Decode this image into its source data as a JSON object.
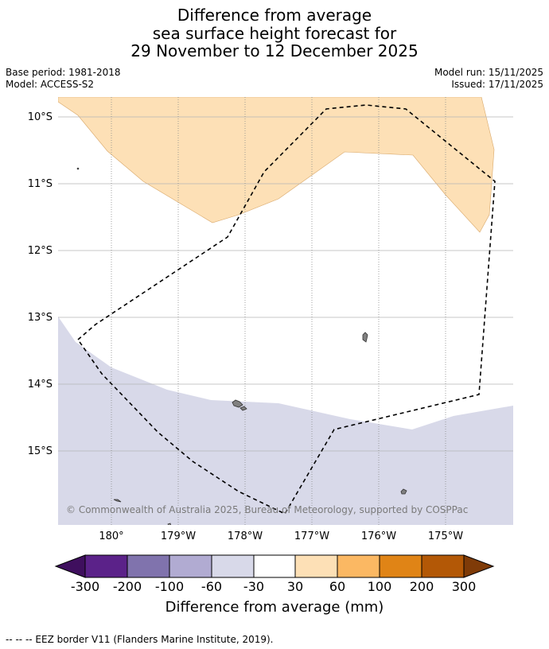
{
  "header": {
    "title_lines": [
      "Difference from average",
      "sea surface height forecast for",
      "29 November to 12 December 2025"
    ],
    "base_period": "Base period: 1981-2018",
    "model": "Model: ACCESS-S2",
    "model_run": "Model run: 15/11/2025",
    "issued": "Issued: 17/11/2025"
  },
  "map": {
    "lat_labels": [
      "10°S",
      "11°S",
      "12°S",
      "13°S",
      "14°S",
      "15°S"
    ],
    "lon_labels": [
      "180°",
      "179°W",
      "178°W",
      "177°W",
      "176°W",
      "175°W"
    ],
    "copyright": "© Commonwealth of Australia 2025, Bureau of Meteorology, supported by COSPPac",
    "fill_colors": {
      "positive_30_60": "#fde0b6",
      "negative_60_30": "#d8d9e9",
      "land": "#808080",
      "eez_line": "#000000"
    }
  },
  "colorbar": {
    "ticks": [
      "-300",
      "-200",
      "-100",
      "-60",
      "-30",
      "30",
      "60",
      "100",
      "200",
      "300"
    ],
    "colors": [
      "#3f0f5e",
      "#5b2289",
      "#8073ad",
      "#b1abd2",
      "#d8d9e9",
      "#ffffff",
      "#fde0b6",
      "#fbb863",
      "#e08416",
      "#b35806",
      "#7f3b08"
    ],
    "label": "Difference from average (mm)"
  },
  "footer": {
    "legend_text": "--  --  -- EEZ border V11 (Flanders Marine Institute, 2019)."
  }
}
